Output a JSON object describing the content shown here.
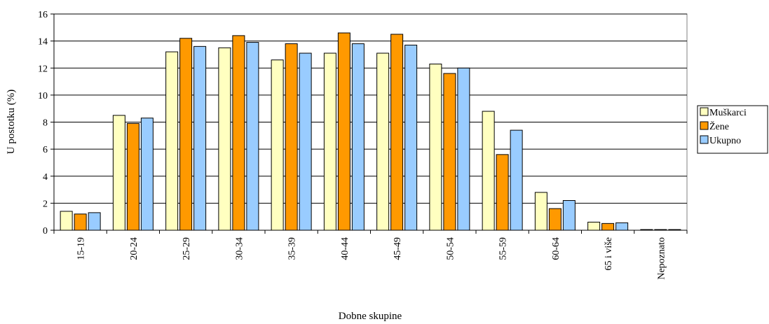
{
  "chart_data": {
    "type": "bar",
    "title": "",
    "xlabel": "Dobne skupine",
    "ylabel": "U postotku (%)",
    "ylim": [
      0,
      16
    ],
    "yticks": [
      0,
      2,
      4,
      6,
      8,
      10,
      12,
      14,
      16
    ],
    "grid": true,
    "legend_position": "right",
    "categories": [
      "15-19",
      "20-24",
      "25-29",
      "30-34",
      "35-39",
      "40-44",
      "45-49",
      "50-54",
      "55-59",
      "60-64",
      "65 i više",
      "Nepoznato"
    ],
    "series": [
      {
        "name": "Muškarci",
        "color": "#FFFFC0",
        "values": [
          1.4,
          8.5,
          13.2,
          13.5,
          12.6,
          13.1,
          13.1,
          12.3,
          8.8,
          2.8,
          0.6,
          0.05
        ]
      },
      {
        "name": "Žene",
        "color": "#FF9900",
        "values": [
          1.2,
          7.9,
          14.2,
          14.4,
          13.8,
          14.6,
          14.5,
          11.6,
          5.6,
          1.6,
          0.5,
          0.05
        ]
      },
      {
        "name": "Ukupno",
        "color": "#99CCFF",
        "values": [
          1.3,
          8.3,
          13.6,
          13.9,
          13.1,
          13.8,
          13.7,
          12.0,
          7.4,
          2.2,
          0.55,
          0.05
        ]
      }
    ]
  }
}
